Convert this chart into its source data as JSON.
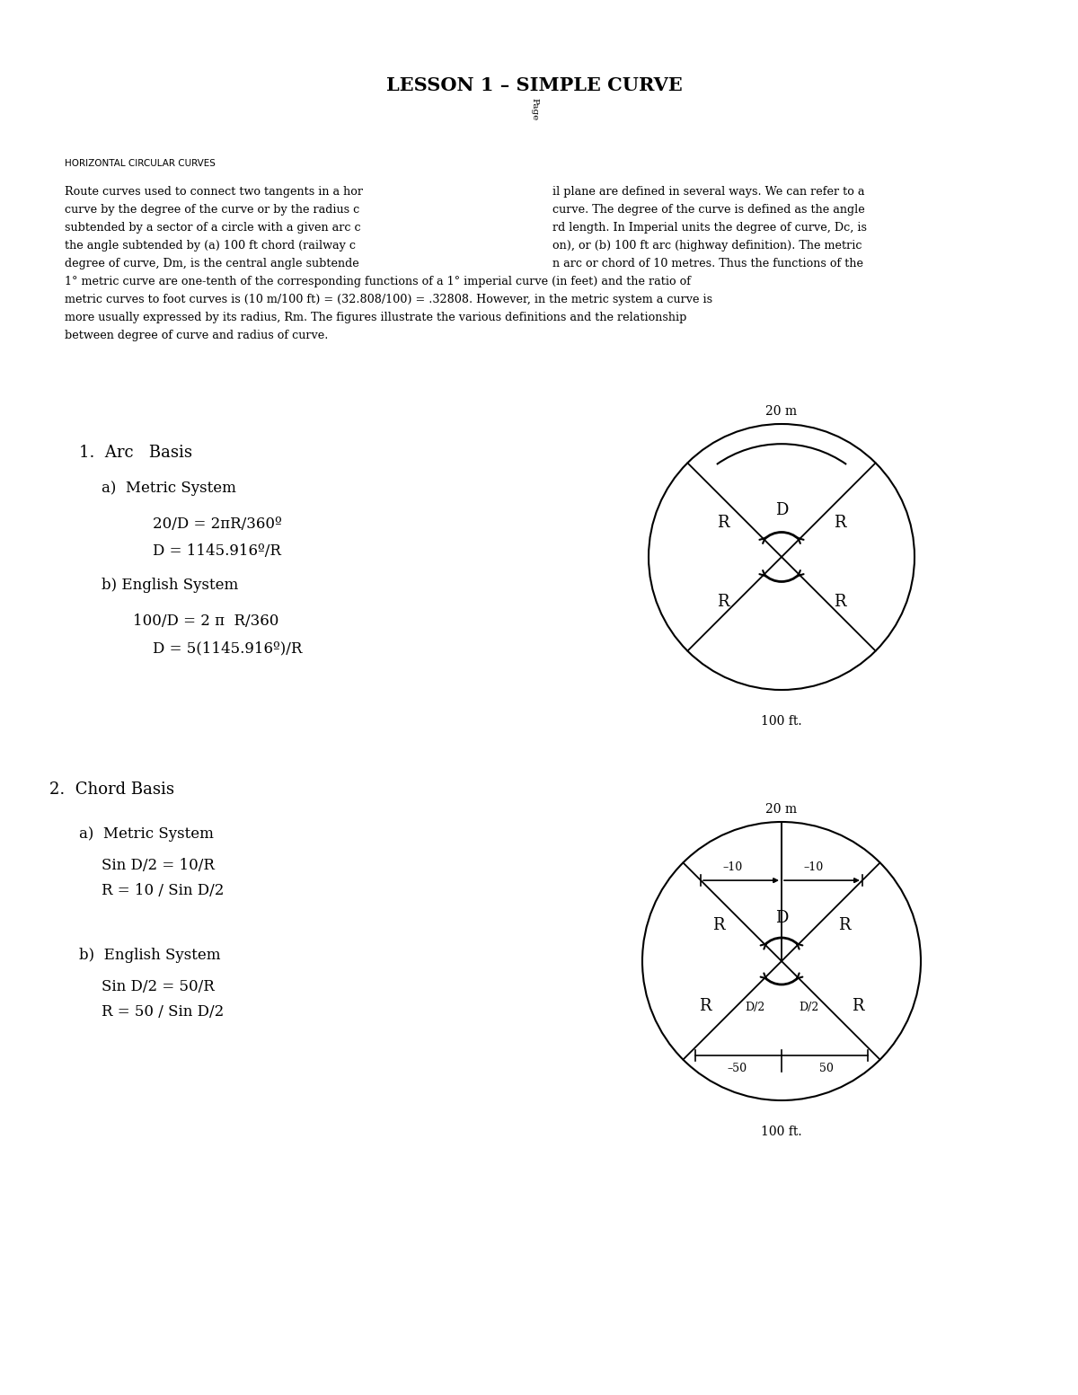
{
  "title": "LESSON 1 – SIMPLE CURVE",
  "page_label": "Page",
  "background_color": "#ffffff",
  "section_header": "HORIZONTAL CIRCULAR CURVES",
  "body_lines_2col": [
    [
      "Route curves used to connect two tangents in a hor",
      "il plane are defined in several ways. We can refer to a"
    ],
    [
      "curve by the degree of the curve or by the radius c",
      "curve. The degree of the curve is defined as the angle"
    ],
    [
      "subtended by a sector of a circle with a given arc c",
      "rd length. In Imperial units the degree of curve, Dc, is"
    ],
    [
      "the angle subtended by (a) 100 ft chord (railway c",
      "on), or (b) 100 ft arc (highway definition). The metric"
    ],
    [
      "degree of curve, Dm, is the central angle subtende",
      "n arc or chord of 10 metres. Thus the functions of the"
    ]
  ],
  "body_lines_1col": [
    "1° metric curve are one-tenth of the corresponding functions of a 1° imperial curve (in feet) and the ratio of",
    "metric curves to foot curves is (10 m/100 ft) = (32.808/100) = .32808. However, in the metric system a curve is",
    "more usually expressed by its radius, Rm. The figures illustrate the various definitions and the relationship",
    "between degree of curve and radius of curve."
  ],
  "section1_title": "1.  Arc   Basis",
  "section1a_title": "a)  Metric System",
  "section1a_eq1": "20/D = 2πR/360º",
  "section1a_eq2": "D = 1145.916º/R",
  "section1b_title": "b) English System",
  "section1b_eq1": "100/D = 2 π  R/360",
  "section1b_eq2": "D = 5(1145.916º)/R",
  "section2_title": "2.  Chord Basis",
  "section2a_title": "a)  Metric System",
  "section2a_eq1": "Sin D/2 = 10/R",
  "section2a_eq2": "R = 10 / Sin D/2",
  "section2b_title": "b)  English System",
  "section2b_eq1": "Sin D/2 = 50/R",
  "section2b_eq2": "R = 50 / Sin D/2",
  "fig1_top_label": "20 m",
  "fig1_bottom_label": "100 ft.",
  "fig2_top_label": "20 m",
  "fig2_bottom_label": "100 ft."
}
